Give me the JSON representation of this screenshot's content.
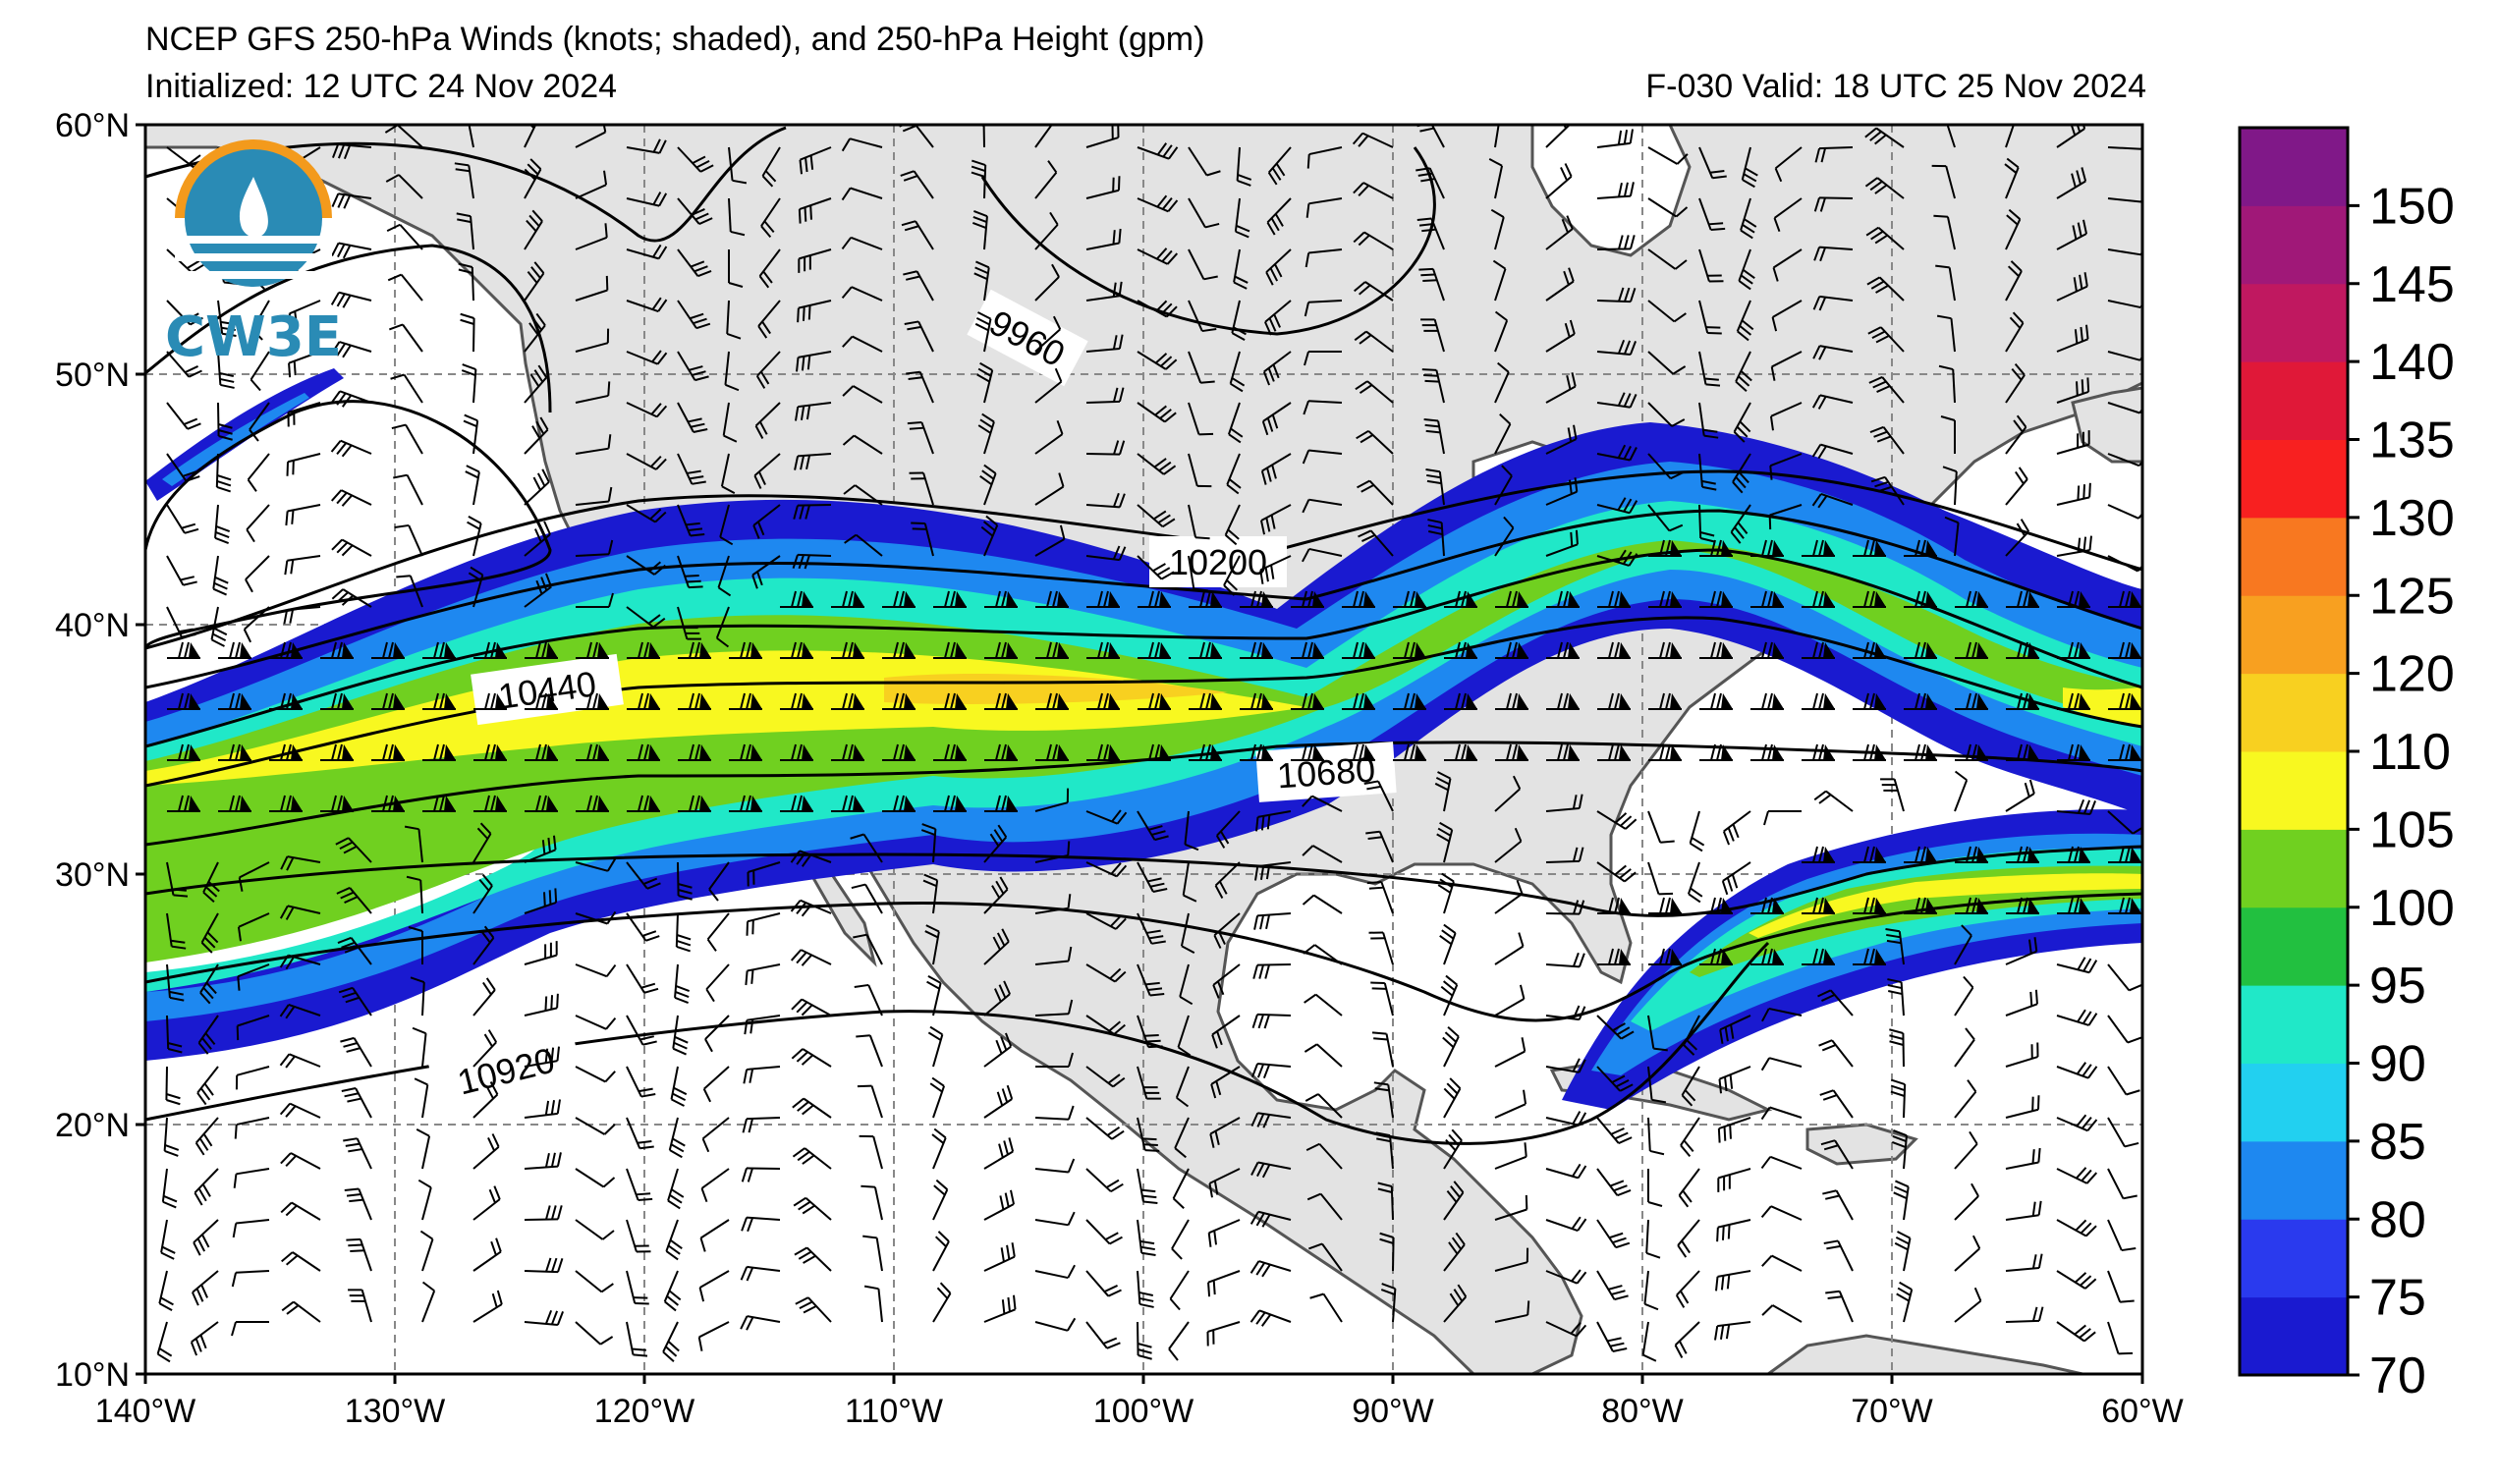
{
  "header": {
    "title": "NCEP GFS 250-hPa Winds (knots; shaded), and 250-hPa Height (gpm)",
    "initialized": "Initialized: 12 UTC 24 Nov 2024",
    "valid": "F-030  Valid: 18 UTC 25 Nov 2024"
  },
  "map": {
    "lat_ticks": [
      "60°N",
      "50°N",
      "40°N",
      "30°N",
      "20°N",
      "10°N"
    ],
    "lon_ticks": [
      "140°W",
      "130°W",
      "120°W",
      "110°W",
      "100°W",
      "90°W",
      "80°W",
      "70°W",
      "60°W"
    ],
    "height_contour_labels": [
      "9960",
      "10200",
      "10440",
      "10680",
      "10920"
    ],
    "land_color": "#e3e3e3",
    "coast_color": "#555555"
  },
  "colorbar": {
    "ticks": [
      "70",
      "75",
      "80",
      "85",
      "90",
      "95",
      "100",
      "105",
      "110",
      "120",
      "125",
      "130",
      "135",
      "140",
      "145",
      "150"
    ],
    "colors": [
      "#1a1ad0",
      "#2a3aee",
      "#1e88f0",
      "#22d0f0",
      "#20e8c8",
      "#22c040",
      "#70d020",
      "#f8f820",
      "#f8d020",
      "#f8a020",
      "#f87820",
      "#f82020",
      "#e01838",
      "#c01860",
      "#a01878",
      "#801888"
    ]
  },
  "logo": {
    "text": "CW3E",
    "colors": {
      "orange": "#f39a1c",
      "blue": "#2a8bb5"
    }
  }
}
